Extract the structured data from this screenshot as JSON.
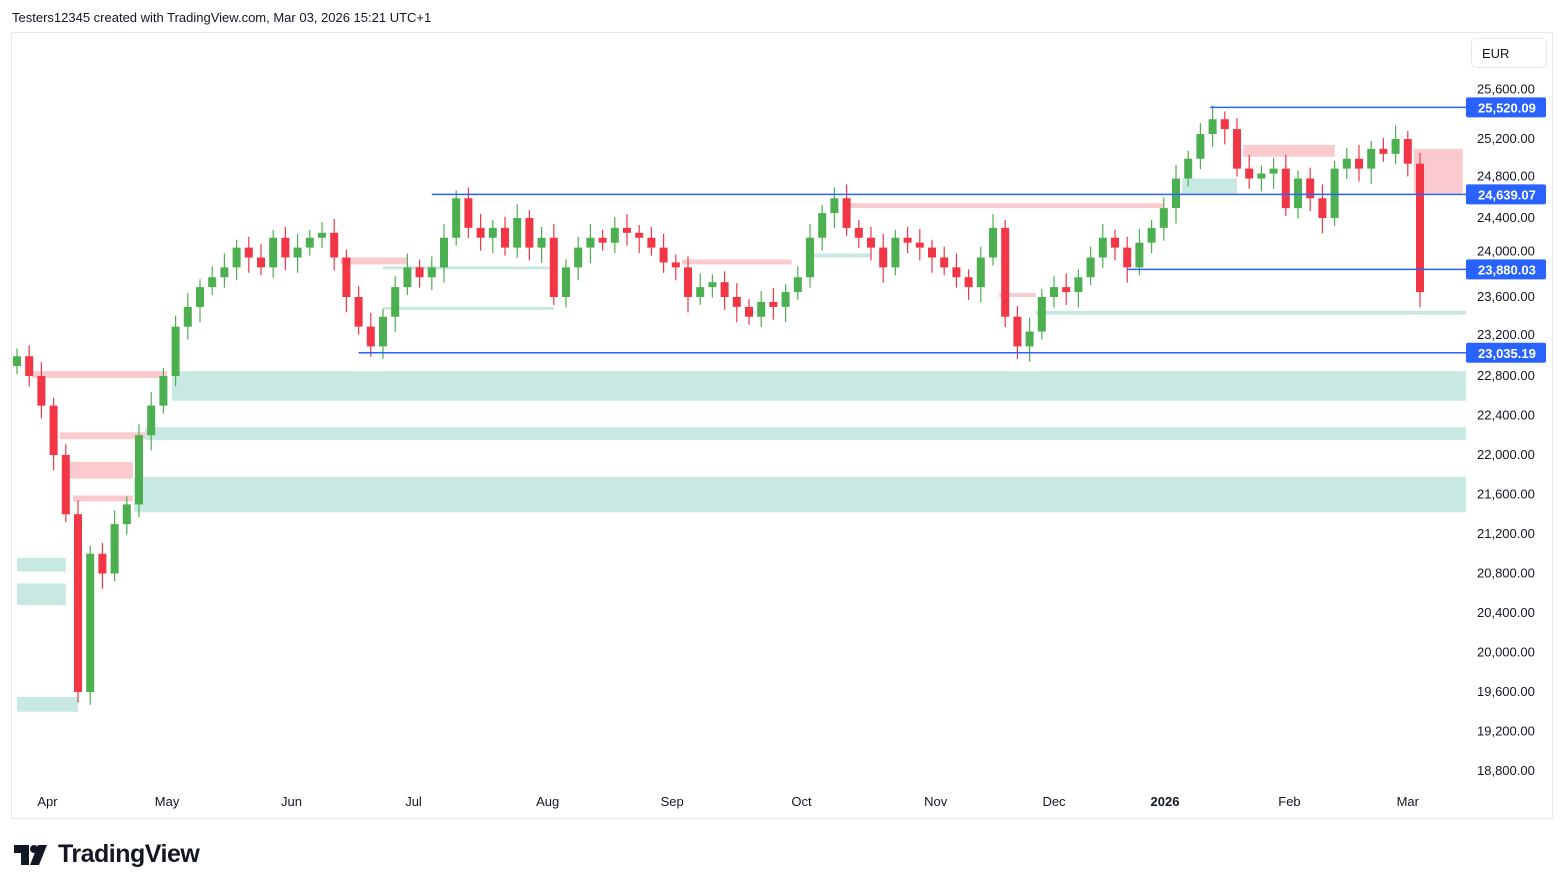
{
  "header": {
    "attribution": "Testers12345 created with TradingView.com, Mar 03, 2026 15:21 UTC+1"
  },
  "currency_button": "EUR",
  "logo_text": "TradingView",
  "colors": {
    "up": "#4caf50",
    "down": "#f23645",
    "level": "#2962ff",
    "demand": "#c8e9e1",
    "demand_dark": "#a0d8cc",
    "supply": "#fac7cc"
  },
  "chart_data": {
    "type": "candlestick",
    "title": "",
    "ylim": [
      18600,
      25800
    ],
    "y_ticks": [
      "25,600.00",
      "25,200.00",
      "24,800.00",
      "24,400.00",
      "24,000.00",
      "23,600.00",
      "23,200.00",
      "22,800.00",
      "22,400.00",
      "22,000.00",
      "21,600.00",
      "21,200.00",
      "20,800.00",
      "20,400.00",
      "20,000.00",
      "19,600.00",
      "19,200.00",
      "18,800.00"
    ],
    "y_tick_values": [
      25600,
      25200,
      24800,
      24400,
      24000,
      23600,
      23200,
      22800,
      22400,
      22000,
      21600,
      21200,
      20800,
      20400,
      20000,
      19600,
      19200,
      18800
    ],
    "x_labels": [
      {
        "label": "Apr",
        "index": 2.5
      },
      {
        "label": "May",
        "index": 12.3
      },
      {
        "label": "Jun",
        "index": 22.5
      },
      {
        "label": "Jul",
        "index": 32.5
      },
      {
        "label": "Aug",
        "index": 43.5
      },
      {
        "label": "Sep",
        "index": 53.7
      },
      {
        "label": "Oct",
        "index": 64.3
      },
      {
        "label": "Nov",
        "index": 75.3
      },
      {
        "label": "Dec",
        "index": 85
      },
      {
        "label": "2026",
        "index": 94.1,
        "bold": true
      },
      {
        "label": "Feb",
        "index": 104.3
      },
      {
        "label": "Mar",
        "index": 114
      }
    ],
    "closes": [
      23000,
      22800,
      22500,
      22000,
      21400,
      19600,
      21000,
      20800,
      21300,
      21500,
      22200,
      22500,
      22800,
      23300,
      23500,
      23700,
      23800,
      23900,
      24100,
      24000,
      23900,
      24200,
      24000,
      24100,
      24200,
      24250,
      24000,
      23600,
      23300,
      23100,
      23400,
      23700,
      23900,
      23800,
      23900,
      24200,
      24600,
      24300,
      24200,
      24300,
      24100,
      24400,
      24100,
      24200,
      23600,
      23900,
      24100,
      24200,
      24150,
      24300,
      24250,
      24200,
      24100,
      23950,
      23900,
      23600,
      23700,
      23750,
      23600,
      23500,
      23400,
      23550,
      23500,
      23650,
      23800,
      24200,
      24450,
      24600,
      24300,
      24200,
      24100,
      23900,
      24200,
      24150,
      24100,
      24000,
      23900,
      23800,
      23700,
      24000,
      24300,
      23400,
      23100,
      23250,
      23600,
      23700,
      23650,
      23800,
      24000,
      24200,
      24100,
      23900,
      24150,
      24300,
      24500,
      24800,
      25000,
      25250,
      25400,
      25300,
      24900,
      24800,
      24850,
      24900,
      24500,
      24800,
      24600,
      24400,
      24900,
      25000,
      24900,
      25100,
      25050,
      25200,
      24950,
      23650
    ],
    "levels": [
      {
        "label": "25,520.09",
        "price": 25520.09,
        "from_index": 97.8
      },
      {
        "label": "24,639.07",
        "price": 24639.07,
        "from_index": 34
      },
      {
        "label": "23,880.03",
        "price": 23880.03,
        "from_index": 91
      },
      {
        "label": "23,035.19",
        "price": 23035.19,
        "from_index": 28
      }
    ],
    "zones": [
      {
        "kind": "demand",
        "lo": 22550,
        "hi": 22850,
        "from": 12.7,
        "to": 120
      },
      {
        "kind": "demand",
        "lo": 22150,
        "hi": 22280,
        "from": 10.5,
        "to": 120
      },
      {
        "kind": "demand_dark",
        "lo": 21480,
        "hi": 21720,
        "from": 9.8,
        "to": 120
      },
      {
        "kind": "demand",
        "lo": 21420,
        "hi": 21780,
        "from": 9.6,
        "to": 120
      },
      {
        "kind": "demand",
        "lo": 23420,
        "hi": 23460,
        "from": 83.5,
        "to": 120
      },
      {
        "kind": "demand",
        "lo": 23880,
        "hi": 23910,
        "from": 30,
        "to": 44
      },
      {
        "kind": "demand",
        "lo": 23470,
        "hi": 23500,
        "from": 30,
        "to": 44
      },
      {
        "kind": "demand",
        "lo": 24000,
        "hi": 24040,
        "from": 65,
        "to": 70
      },
      {
        "kind": "demand",
        "lo": 24650,
        "hi": 24800,
        "from": 95.5,
        "to": 100
      },
      {
        "kind": "demand",
        "lo": 20480,
        "hi": 20700,
        "from": 0,
        "to": 4
      },
      {
        "kind": "demand",
        "lo": 20820,
        "hi": 20960,
        "from": 0,
        "to": 4
      },
      {
        "kind": "demand",
        "lo": 19400,
        "hi": 19550,
        "from": 0,
        "to": 5
      },
      {
        "kind": "supply",
        "lo": 22780,
        "hi": 22850,
        "from": 1.2,
        "to": 12.3
      },
      {
        "kind": "supply",
        "lo": 22160,
        "hi": 22230,
        "from": 3.5,
        "to": 10.5
      },
      {
        "kind": "supply",
        "lo": 21760,
        "hi": 21930,
        "from": 4.2,
        "to": 9.5
      },
      {
        "kind": "supply",
        "lo": 21530,
        "hi": 21590,
        "from": 4.6,
        "to": 9.5
      },
      {
        "kind": "supply",
        "lo": 23930,
        "hi": 24000,
        "from": 26.5,
        "to": 32
      },
      {
        "kind": "supply",
        "lo": 24500,
        "hi": 24550,
        "from": 68,
        "to": 94
      },
      {
        "kind": "supply",
        "lo": 23930,
        "hi": 23980,
        "from": 54.5,
        "to": 63.5
      },
      {
        "kind": "supply",
        "lo": 23600,
        "hi": 23640,
        "from": 80.5,
        "to": 83.5
      },
      {
        "kind": "supply",
        "lo": 25020,
        "hi": 25140,
        "from": 100.5,
        "to": 108
      },
      {
        "kind": "supply",
        "lo": 24650,
        "hi": 25100,
        "from": 114.5,
        "to": 118.5
      },
      {
        "kind": "supply",
        "lo": 25000,
        "hi": 25080,
        "from": 114.5,
        "to": 118.5
      }
    ]
  }
}
